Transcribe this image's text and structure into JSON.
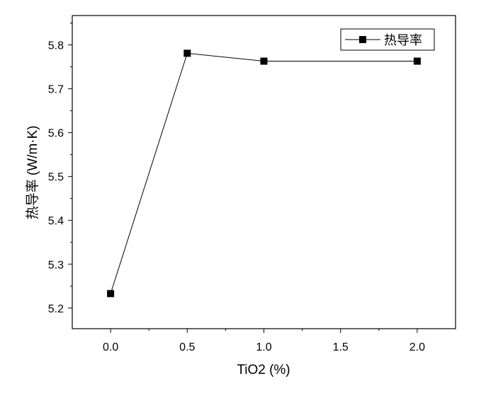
{
  "chart_data": {
    "type": "line",
    "title": "",
    "xlabel": "TiO2 (%)",
    "ylabel": "热导率 (W/m·K)",
    "x": [
      0.0,
      0.5,
      1.0,
      2.0
    ],
    "xlim": [
      -0.25,
      2.25
    ],
    "ylim": [
      5.153,
      5.867
    ],
    "xticks": [
      0.0,
      0.5,
      1.0,
      1.5,
      2.0
    ],
    "xtick_labels": [
      "0.0",
      "0.5",
      "1.0",
      "1.5",
      "2.0"
    ],
    "yticks": [
      5.2,
      5.3,
      5.4,
      5.5,
      5.6,
      5.7,
      5.8
    ],
    "ytick_labels": [
      "5.2",
      "5.3",
      "5.4",
      "5.5",
      "5.6",
      "5.7",
      "5.8"
    ],
    "series": [
      {
        "name": "热导率",
        "values": [
          5.233,
          5.781,
          5.763,
          5.763
        ],
        "color": "#000000",
        "marker": "square"
      }
    ],
    "legend": "top-right",
    "grid": false
  }
}
